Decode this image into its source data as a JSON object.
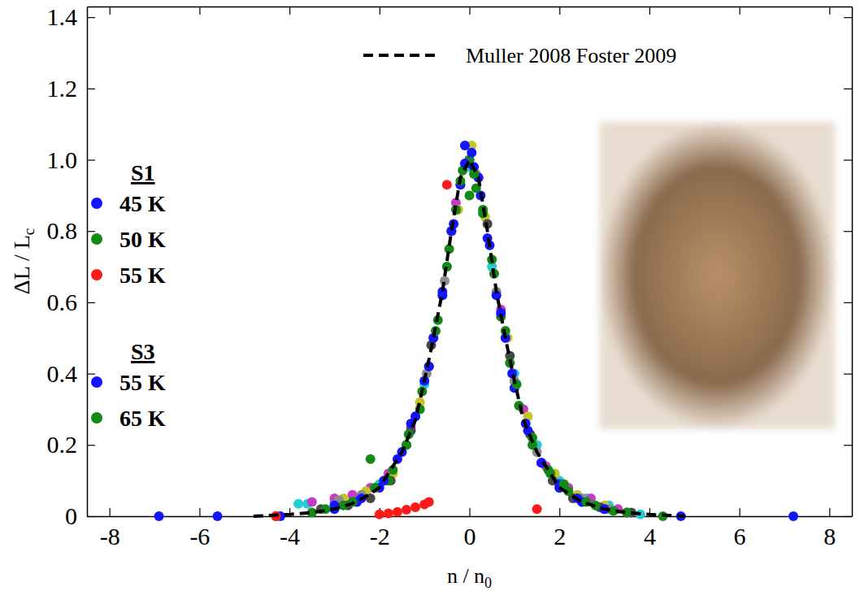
{
  "chart_data": {
    "type": "scatter",
    "x_label": {
      "text": "n / n",
      "subscript": "0"
    },
    "y_label": {
      "text": "ΔL / L",
      "subscript": "c"
    },
    "xlim": [
      -8.5,
      8.5
    ],
    "ylim": [
      0,
      1.43
    ],
    "xticks": [
      -8,
      -6,
      -4,
      -2,
      0,
      2,
      4,
      6,
      8
    ],
    "yticks": [
      0,
      0.2,
      0.4,
      0.6,
      0.8,
      {
        "value": 1.0,
        "label": "1.0"
      },
      1.2,
      1.4
    ],
    "legend": "left",
    "series": [
      {
        "color": "#22cdd6",
        "marker": "circle",
        "x": [
          -3.8,
          -3.6,
          -3,
          -2.5,
          -2,
          -1.5,
          -1,
          -0.5,
          0,
          0.5,
          1,
          1.5,
          2,
          2.6,
          3.1,
          3.8
        ],
        "values": [
          0.035,
          0.035,
          0.04,
          0.05,
          0.09,
          0.18,
          0.37,
          0.7,
          0.98,
          0.7,
          0.4,
          0.2,
          0.1,
          0.05,
          0.03,
          0.005
        ]
      },
      {
        "color": "#c43cc4",
        "marker": "circle",
        "x": [
          -3.5,
          -3,
          -2.6,
          -2.2,
          -1.8,
          -1.3,
          -0.8,
          -0.3,
          0.2,
          0.7,
          1.2,
          1.7,
          2.2,
          2.7,
          3.3
        ],
        "values": [
          0.04,
          0.05,
          0.06,
          0.08,
          0.12,
          0.25,
          0.5,
          0.88,
          0.95,
          0.58,
          0.3,
          0.14,
          0.08,
          0.05,
          0.02
        ]
      },
      {
        "color": "#c4c424",
        "marker": "circle",
        "x": [
          -2.8,
          -2.3,
          -1.7,
          -1.1,
          -0.6,
          -0.25,
          0.05,
          0.35,
          0.85,
          1.3,
          1.9,
          2.4,
          3
        ],
        "values": [
          0.05,
          0.07,
          0.12,
          0.32,
          0.62,
          0.86,
          1.04,
          0.84,
          0.5,
          0.28,
          0.12,
          0.06,
          0.03
        ]
      },
      {
        "color": "#8c8c8c",
        "marker": "circle",
        "x": [
          -2.9,
          -2.4,
          -1.9,
          -1.4,
          -0.95,
          -0.55,
          -0.2,
          0.15,
          0.6,
          1.0,
          1.5,
          2.0,
          2.5,
          3.1
        ],
        "values": [
          0.045,
          0.06,
          0.1,
          0.2,
          0.4,
          0.66,
          0.93,
          0.96,
          0.63,
          0.38,
          0.18,
          0.08,
          0.05,
          0.02
        ]
      },
      {
        "color": "#484848",
        "marker": "circle",
        "x": [
          -3.3,
          -2.7,
          -2.2,
          -1.75,
          -1.3,
          -0.85,
          -0.4,
          0,
          0.4,
          0.9,
          1.35,
          1.85,
          2.3,
          2.9,
          3.6
        ],
        "values": [
          0.02,
          0.03,
          0.05,
          0.1,
          0.24,
          0.48,
          0.8,
          0.99,
          0.82,
          0.45,
          0.23,
          0.1,
          0.05,
          0.025,
          0.01
        ]
      },
      {
        "name": "45 K",
        "group": "S1",
        "color": "#1414ff",
        "marker": "circle",
        "x": [
          -6.9,
          -5.6,
          -4.2,
          -3,
          -2.5,
          -2,
          -1.6,
          -1.3,
          -1,
          -0.8,
          -0.6,
          -0.4,
          -0.2,
          -0.1,
          0,
          0.1,
          0.25,
          0.4,
          0.6,
          0.8,
          1,
          1.3,
          1.6,
          2,
          2.5,
          3,
          3.5,
          4.7,
          7.2
        ],
        "values": [
          0,
          0,
          0,
          0.02,
          0.04,
          0.08,
          0.16,
          0.26,
          0.38,
          0.5,
          0.63,
          0.8,
          0.93,
          1.04,
          1.0,
          0.98,
          0.9,
          0.78,
          0.62,
          0.5,
          0.36,
          0.24,
          0.15,
          0.08,
          0.04,
          0.02,
          0.01,
          0,
          0
        ]
      },
      {
        "name": "50 K",
        "group": "S1",
        "color": "#138a13",
        "marker": "circle",
        "x": [
          -4.3,
          -3.5,
          -2.8,
          -2.2,
          -1.8,
          -1.4,
          -1.1,
          -0.9,
          -0.7,
          -0.5,
          -0.3,
          -0.15,
          0,
          0.15,
          0.3,
          0.5,
          0.7,
          0.9,
          1.1,
          1.4,
          1.8,
          2.2,
          2.8,
          3.5,
          4.3
        ],
        "values": [
          0,
          0.01,
          0.03,
          0.16,
          0.1,
          0.2,
          0.3,
          0.42,
          0.55,
          0.7,
          0.86,
          0.97,
          1.0,
          0.92,
          0.85,
          0.72,
          0.56,
          0.43,
          0.31,
          0.2,
          0.12,
          0.07,
          0.03,
          0.01,
          0
        ]
      },
      {
        "name": "55 K",
        "group": "S1",
        "color": "#ff1a1a",
        "marker": "circle",
        "x": [
          -4.3,
          -2,
          -1.8,
          -1.6,
          -1.4,
          -1.2,
          -1.0,
          -0.9,
          -0.5,
          1.5
        ],
        "values": [
          0,
          0.005,
          0.008,
          0.012,
          0.018,
          0.025,
          0.033,
          0.04,
          0.93,
          0.02
        ]
      },
      {
        "name": "55 K",
        "group": "S3",
        "color": "#1414ff",
        "marker": "circle",
        "x": [
          -3,
          -2.4,
          -1.9,
          -1.5,
          -1.2,
          -0.9,
          -0.6,
          -0.35,
          -0.1,
          0.05,
          0.2,
          0.45,
          0.7,
          0.95,
          1.25,
          1.6,
          2,
          2.4,
          3
        ],
        "values": [
          0.03,
          0.05,
          0.1,
          0.18,
          0.28,
          0.42,
          0.62,
          0.82,
          0.99,
          1.02,
          0.95,
          0.76,
          0.57,
          0.4,
          0.26,
          0.15,
          0.09,
          0.05,
          0.02
        ]
      },
      {
        "name": "65 K",
        "group": "S3",
        "color": "#138a13",
        "marker": "circle",
        "x": [
          -3.2,
          -2.6,
          -2.1,
          -1.7,
          -1.35,
          -1.05,
          -0.75,
          -0.45,
          -0.2,
          0,
          0.1,
          0.3,
          0.55,
          0.8,
          1.05,
          1.4,
          1.75,
          2.1,
          2.6,
          3.2
        ],
        "values": [
          0.02,
          0.04,
          0.08,
          0.13,
          0.23,
          0.35,
          0.52,
          0.75,
          0.94,
          0.9,
          0.96,
          0.86,
          0.68,
          0.52,
          0.37,
          0.22,
          0.13,
          0.09,
          0.04,
          0.015
        ]
      },
      {
        "name": "Muller 2008 Foster 2009",
        "type": "line",
        "line_style": "dashed",
        "color": "#000000",
        "x": [
          -4.8,
          -4,
          -3.5,
          -3,
          -2.5,
          -2,
          -1.5,
          -1.2,
          -1,
          -0.8,
          -0.6,
          -0.4,
          -0.2,
          0,
          0.2,
          0.4,
          0.6,
          0.8,
          1,
          1.2,
          1.5,
          2,
          2.5,
          3,
          3.5,
          4,
          4.8
        ],
        "values": [
          0,
          0.005,
          0.01,
          0.02,
          0.04,
          0.08,
          0.18,
          0.27,
          0.38,
          0.5,
          0.63,
          0.8,
          0.95,
          1.0,
          0.95,
          0.8,
          0.63,
          0.5,
          0.38,
          0.27,
          0.18,
          0.08,
          0.04,
          0.02,
          0.01,
          0.005,
          0
        ]
      }
    ]
  }
}
